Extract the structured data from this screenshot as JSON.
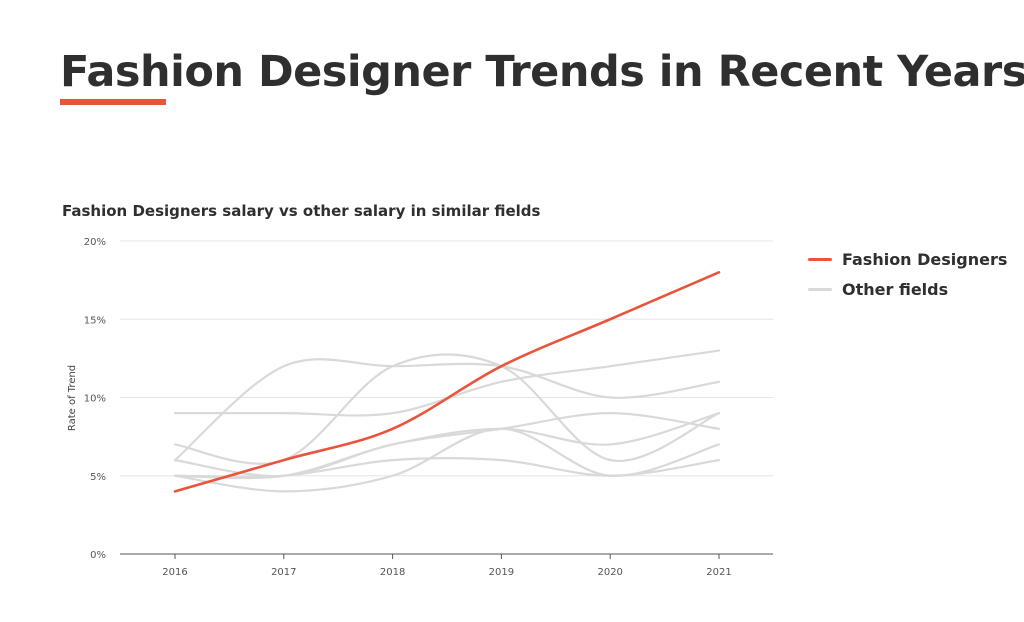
{
  "page": {
    "title": "Fashion Designer Trends in Recent Years",
    "accent_color": "#e8553c"
  },
  "chart_data": {
    "type": "line",
    "title": "Fashion Designers salary vs other salary in similar fields",
    "xlabel": "",
    "ylabel": "Rate of Trend",
    "x": [
      "2016",
      "2017",
      "2018",
      "2019",
      "2020",
      "2021"
    ],
    "ylim": [
      0,
      20
    ],
    "y_ticks": [
      0,
      5,
      10,
      15,
      20
    ],
    "y_tick_labels": [
      "0%",
      "5%",
      "10%",
      "15%",
      "20%"
    ],
    "grid": true,
    "legend_position": "right",
    "legend": [
      {
        "label": "Fashion Designers",
        "color": "#e8553c"
      },
      {
        "label": "Other fields",
        "color": "#d9d9d9"
      }
    ],
    "series": [
      {
        "name": "Fashion Designers",
        "color": "#e8553c",
        "highlight": true,
        "values": [
          4,
          6,
          8,
          12,
          15,
          18
        ]
      },
      {
        "name": "Other fields",
        "color": "#d9d9d9",
        "values": [
          9,
          9,
          9,
          11,
          12,
          13
        ]
      },
      {
        "name": "Other fields",
        "color": "#d9d9d9",
        "values": [
          6,
          12,
          12,
          12,
          10,
          11
        ]
      },
      {
        "name": "Other fields",
        "color": "#d9d9d9",
        "values": [
          7,
          6,
          12,
          12,
          6,
          9
        ]
      },
      {
        "name": "Other fields",
        "color": "#d9d9d9",
        "values": [
          5,
          5,
          7,
          8,
          9,
          8
        ]
      },
      {
        "name": "Other fields",
        "color": "#d9d9d9",
        "values": [
          6,
          5,
          7,
          8,
          7,
          9
        ]
      },
      {
        "name": "Other fields",
        "color": "#d9d9d9",
        "values": [
          5,
          5,
          6,
          6,
          5,
          6
        ]
      },
      {
        "name": "Other fields",
        "color": "#d9d9d9",
        "values": [
          5,
          4,
          5,
          8,
          5,
          7
        ]
      }
    ]
  }
}
